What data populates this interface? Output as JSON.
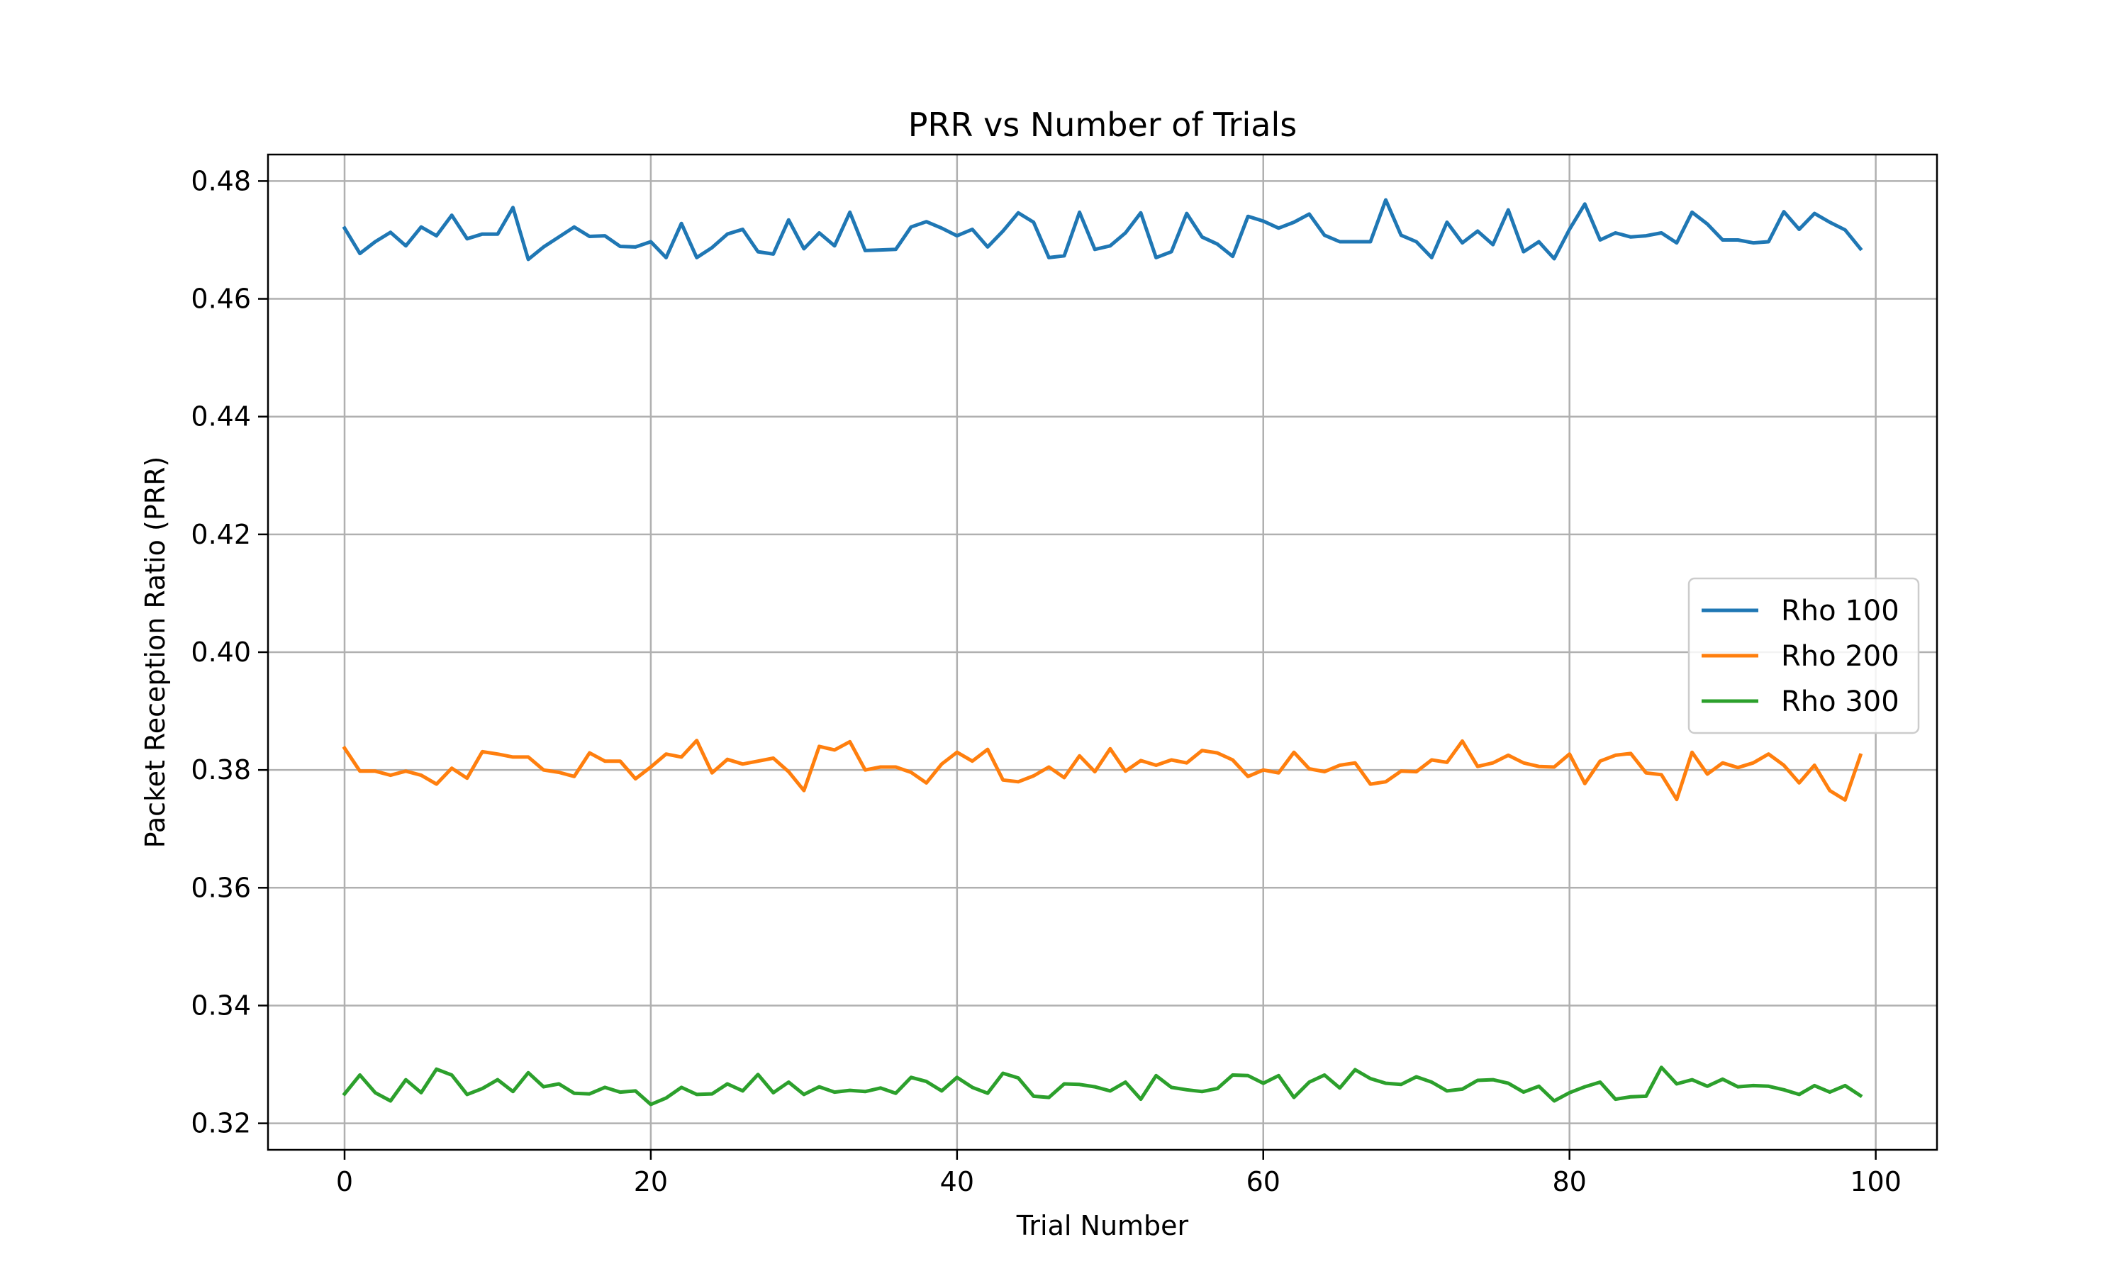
{
  "chart_data": {
    "type": "line",
    "title": "PRR vs Number of Trials",
    "xlabel": "Trial Number",
    "ylabel": "Packet Reception Ratio (PRR)",
    "xlim": [
      -5,
      104
    ],
    "ylim": [
      0.3155,
      0.4845
    ],
    "xticks": [
      0,
      20,
      40,
      60,
      80,
      100
    ],
    "xtick_labels": [
      "0",
      "20",
      "40",
      "60",
      "80",
      "100"
    ],
    "yticks": [
      0.32,
      0.34,
      0.36,
      0.38,
      0.4,
      0.42,
      0.44,
      0.46,
      0.48
    ],
    "ytick_labels": [
      "0.32",
      "0.34",
      "0.36",
      "0.38",
      "0.40",
      "0.42",
      "0.44",
      "0.46",
      "0.48"
    ],
    "grid": true,
    "legend_position": "center-right",
    "x": [
      0,
      1,
      2,
      3,
      4,
      5,
      6,
      7,
      8,
      9,
      10,
      11,
      12,
      13,
      14,
      15,
      16,
      17,
      18,
      19,
      20,
      21,
      22,
      23,
      24,
      25,
      26,
      27,
      28,
      29,
      30,
      31,
      32,
      33,
      34,
      35,
      36,
      37,
      38,
      39,
      40,
      41,
      42,
      43,
      44,
      45,
      46,
      47,
      48,
      49,
      50,
      51,
      52,
      53,
      54,
      55,
      56,
      57,
      58,
      59,
      60,
      61,
      62,
      63,
      64,
      65,
      66,
      67,
      68,
      69,
      70,
      71,
      72,
      73,
      74,
      75,
      76,
      77,
      78,
      79,
      80,
      81,
      82,
      83,
      84,
      85,
      86,
      87,
      88,
      89,
      90,
      91,
      92,
      93,
      94,
      95,
      96,
      97,
      98,
      99
    ],
    "series": [
      {
        "name": "Rho 100",
        "color": "#1f77b4",
        "values": [
          0.472,
          0.4677,
          0.4697,
          0.4713,
          0.469,
          0.4722,
          0.4707,
          0.4742,
          0.4702,
          0.471,
          0.471,
          0.4755,
          0.4667,
          0.4688,
          0.4705,
          0.4722,
          0.4706,
          0.4707,
          0.4689,
          0.4688,
          0.4697,
          0.467,
          0.4728,
          0.467,
          0.4687,
          0.471,
          0.4718,
          0.468,
          0.4676,
          0.4734,
          0.4685,
          0.4712,
          0.469,
          0.4747,
          0.4682,
          0.4683,
          0.4684,
          0.4722,
          0.4731,
          0.472,
          0.4707,
          0.4718,
          0.4688,
          0.4715,
          0.4746,
          0.473,
          0.467,
          0.4673,
          0.4747,
          0.4684,
          0.469,
          0.4712,
          0.4746,
          0.467,
          0.468,
          0.4745,
          0.4705,
          0.4693,
          0.4672,
          0.474,
          0.4732,
          0.472,
          0.473,
          0.4744,
          0.4708,
          0.4697,
          0.4697,
          0.4697,
          0.4768,
          0.4708,
          0.4697,
          0.467,
          0.473,
          0.4695,
          0.4715,
          0.4692,
          0.4751,
          0.468,
          0.4697,
          0.4668,
          0.4718,
          0.4761,
          0.47,
          0.4712,
          0.4705,
          0.4707,
          0.4712,
          0.4695,
          0.4747,
          0.4727,
          0.47,
          0.47,
          0.4695,
          0.4697,
          0.4748,
          0.4718,
          0.4745,
          0.473,
          0.4717,
          0.4685
        ]
      },
      {
        "name": "Rho 200",
        "color": "#ff7f0e",
        "values": [
          0.3837,
          0.3798,
          0.3798,
          0.3791,
          0.3798,
          0.3791,
          0.3776,
          0.3803,
          0.3786,
          0.3831,
          0.3827,
          0.3822,
          0.3822,
          0.38,
          0.3796,
          0.3789,
          0.3829,
          0.3815,
          0.3815,
          0.3785,
          0.3805,
          0.3827,
          0.3822,
          0.385,
          0.3795,
          0.3818,
          0.381,
          0.3815,
          0.382,
          0.3797,
          0.3765,
          0.384,
          0.3834,
          0.3848,
          0.38,
          0.3805,
          0.3805,
          0.3796,
          0.3778,
          0.381,
          0.383,
          0.3815,
          0.3835,
          0.3783,
          0.378,
          0.379,
          0.3805,
          0.3787,
          0.3824,
          0.3797,
          0.3836,
          0.3798,
          0.3816,
          0.3808,
          0.3817,
          0.3812,
          0.3833,
          0.3829,
          0.3817,
          0.3789,
          0.38,
          0.3795,
          0.383,
          0.3802,
          0.3797,
          0.3808,
          0.3812,
          0.3776,
          0.378,
          0.3798,
          0.3797,
          0.3817,
          0.3813,
          0.3849,
          0.3806,
          0.3812,
          0.3825,
          0.3812,
          0.3806,
          0.3805,
          0.3827,
          0.3777,
          0.3815,
          0.3825,
          0.3828,
          0.3795,
          0.3792,
          0.375,
          0.383,
          0.3793,
          0.3812,
          0.3804,
          0.3812,
          0.3827,
          0.3808,
          0.3778,
          0.3808,
          0.3765,
          0.3749,
          0.3825
        ]
      },
      {
        "name": "Rho 300",
        "color": "#2ca02c",
        "values": [
          0.325,
          0.3282,
          0.3252,
          0.3238,
          0.3274,
          0.3252,
          0.3292,
          0.3282,
          0.3249,
          0.3259,
          0.3274,
          0.3254,
          0.3286,
          0.3262,
          0.3267,
          0.3251,
          0.325,
          0.3261,
          0.3253,
          0.3255,
          0.3232,
          0.3243,
          0.3261,
          0.3249,
          0.325,
          0.3267,
          0.3255,
          0.3283,
          0.3252,
          0.327,
          0.3249,
          0.3262,
          0.3253,
          0.3256,
          0.3254,
          0.326,
          0.3251,
          0.3278,
          0.3271,
          0.3255,
          0.3278,
          0.3261,
          0.3251,
          0.3285,
          0.3277,
          0.3246,
          0.3244,
          0.3267,
          0.3266,
          0.3262,
          0.3255,
          0.327,
          0.3241,
          0.3281,
          0.3261,
          0.3257,
          0.3254,
          0.3259,
          0.3282,
          0.3281,
          0.3268,
          0.3281,
          0.3244,
          0.327,
          0.3282,
          0.326,
          0.3291,
          0.3276,
          0.3268,
          0.3266,
          0.3279,
          0.327,
          0.3255,
          0.3258,
          0.3273,
          0.3274,
          0.3268,
          0.3253,
          0.3263,
          0.3238,
          0.3252,
          0.3262,
          0.327,
          0.3241,
          0.3245,
          0.3246,
          0.3295,
          0.3267,
          0.3274,
          0.3263,
          0.3275,
          0.3262,
          0.3264,
          0.3263,
          0.3257,
          0.3249,
          0.3264,
          0.3253,
          0.3264,
          0.3247
        ]
      }
    ]
  }
}
